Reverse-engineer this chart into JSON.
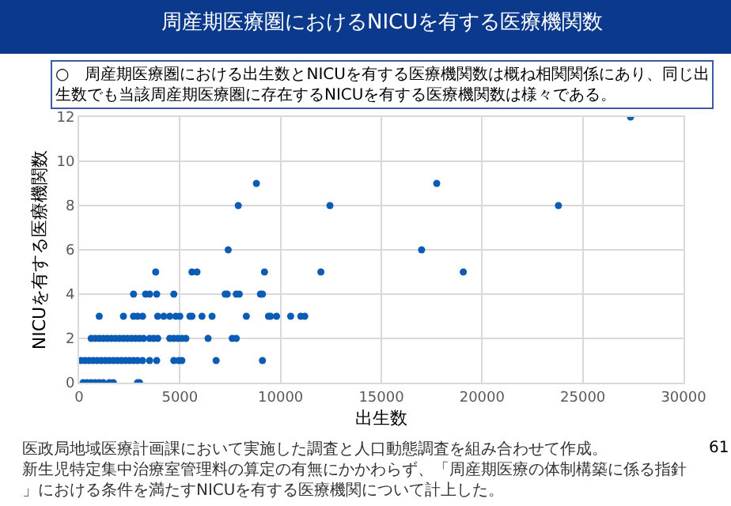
{
  "chart_data": {
    "type": "scatter",
    "title": "周産期医療圏におけるNICUを有する医療機関数",
    "subtitle": "○　周産期医療圏における出生数とNICUを有する医療機関数は概ね相関関係にあり、同じ出生数でも当該周産期医療圏に存在するNICUを有する医療機関数は様々である。",
    "xlabel": "出生数",
    "ylabel": "NICUを有する医療機関数",
    "annotations": [
      "医政局地域医療計画課において実施した調査と人口動態調査を組み合わせて作成。",
      "新生児特定集中治療室管理料の算定の有無にかかわらず、「周産期医療の体制構築に係る指針」における条件を満たすNICUを有する医療機関について計上した。",
      "61"
    ],
    "series": [
      {
        "color": "#0a5cb5",
        "x": [
          200,
          400,
          600,
          800,
          1000,
          1200,
          1500,
          1700,
          2900,
          3000,
          100,
          300,
          500,
          700,
          900,
          1100,
          1300,
          1500,
          1700,
          1900,
          2100,
          2300,
          2500,
          2700,
          2900,
          3150,
          3500,
          3850,
          4700,
          4950,
          5100,
          6800,
          9100,
          600,
          800,
          1000,
          1200,
          1400,
          1600,
          1800,
          2000,
          2200,
          2400,
          2600,
          2800,
          3000,
          3200,
          3500,
          3700,
          3900,
          4500,
          4700,
          4900,
          5100,
          5300,
          6400,
          7600,
          7800,
          1000,
          2200,
          2700,
          2900,
          3150,
          3900,
          4200,
          4500,
          4800,
          5000,
          5500,
          5600,
          6100,
          6600,
          8300,
          9400,
          9500,
          9800,
          10500,
          11000,
          11200,
          2700,
          3300,
          3500,
          3850,
          4700,
          7250,
          7350,
          7800,
          7950,
          9000,
          9100,
          3800,
          5600,
          5850,
          9200,
          12000,
          7400,
          17000,
          7900,
          12450,
          23790,
          8800,
          17750,
          19070,
          27370
        ],
        "values": [
          0,
          0,
          0,
          0,
          0,
          0,
          0,
          0,
          0,
          0,
          1,
          1,
          1,
          1,
          1,
          1,
          1,
          1,
          1,
          1,
          1,
          1,
          1,
          1,
          1,
          1,
          1,
          1,
          1,
          1,
          1,
          1,
          1,
          2,
          2,
          2,
          2,
          2,
          2,
          2,
          2,
          2,
          2,
          2,
          2,
          2,
          2,
          2,
          2,
          2,
          2,
          2,
          2,
          2,
          2,
          2,
          2,
          2,
          3,
          3,
          3,
          3,
          3,
          3,
          3,
          3,
          3,
          3,
          3,
          3,
          3,
          3,
          3,
          3,
          3,
          3,
          3,
          3,
          3,
          4,
          4,
          4,
          4,
          4,
          4,
          4,
          4,
          4,
          4,
          4,
          5,
          5,
          5,
          5,
          5,
          6,
          6,
          8,
          8,
          8,
          9,
          9,
          5,
          12
        ]
      }
    ],
    "xlim": [
      0,
      30000
    ],
    "xticks": [
      0,
      5000,
      10000,
      15000,
      20000,
      25000,
      30000
    ],
    "ylim": [
      0,
      12
    ],
    "yticks": [
      0,
      2,
      4,
      6,
      8,
      10,
      12
    ],
    "grid": true,
    "marker": "circle"
  }
}
